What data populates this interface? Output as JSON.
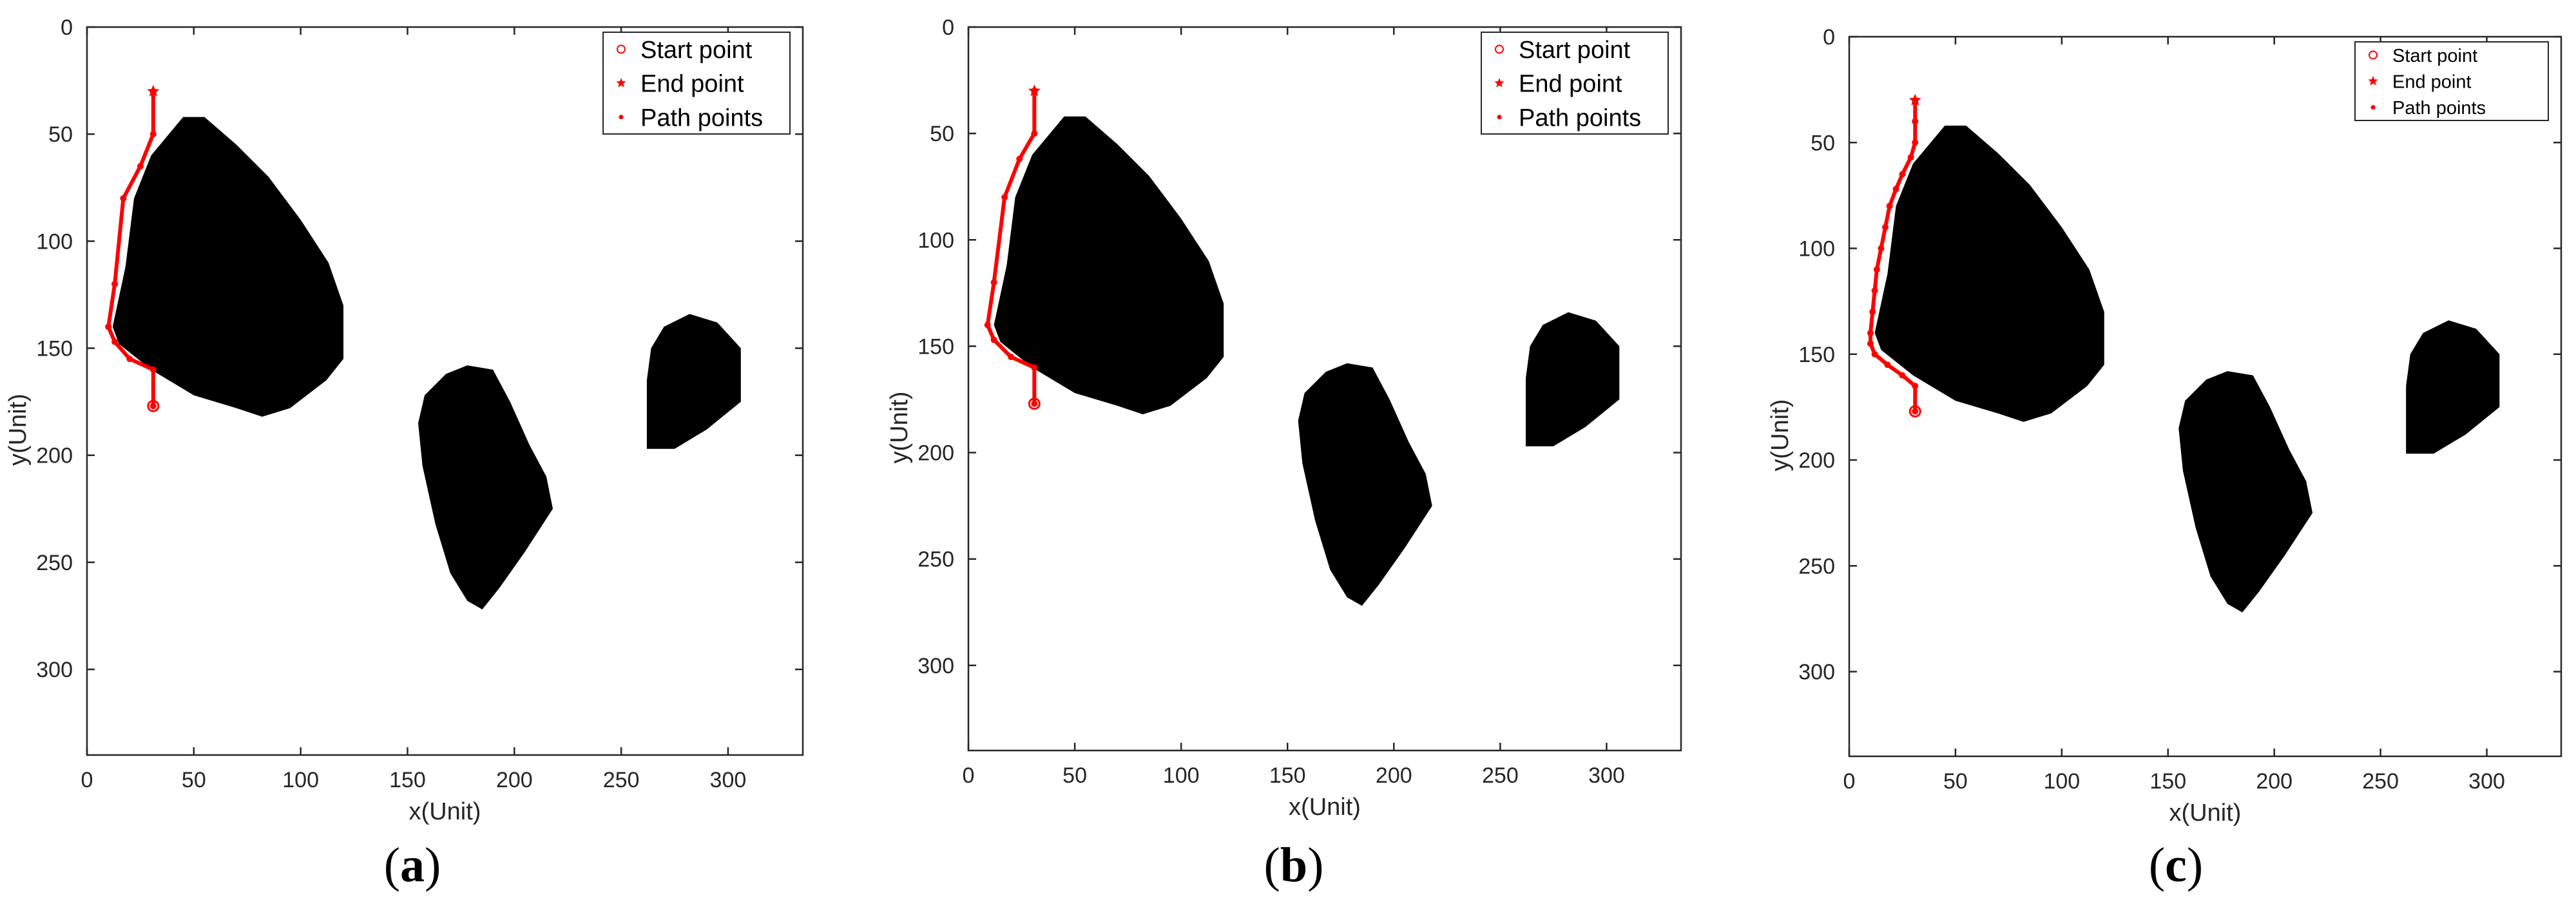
{
  "figure": {
    "captions": [
      {
        "open": "(",
        "letter": "a",
        "close": ")"
      },
      {
        "open": "(",
        "letter": "b",
        "close": ")"
      },
      {
        "open": "(",
        "letter": "c",
        "close": ")"
      }
    ]
  },
  "chart_data": [
    {
      "type": "scatter",
      "panel": "a",
      "title": "",
      "xlabel": "x(Unit)",
      "ylabel": "y(Unit)",
      "xlim": [
        0,
        335
      ],
      "ylim": [
        0,
        340
      ],
      "y_inverted": true,
      "xticks": [
        0,
        50,
        100,
        150,
        200,
        250,
        300
      ],
      "yticks": [
        0,
        50,
        100,
        150,
        200,
        250,
        300
      ],
      "grid": false,
      "legend_position": "top-right",
      "colors": {
        "obstacle": "#000000",
        "path": "#ff0000"
      },
      "obstacles": [
        {
          "name": "obstacle-1",
          "points": [
            [
              12,
              140
            ],
            [
              18,
              112
            ],
            [
              22,
              80
            ],
            [
              30,
              60
            ],
            [
              45,
              42
            ],
            [
              55,
              42
            ],
            [
              70,
              55
            ],
            [
              85,
              70
            ],
            [
              100,
              90
            ],
            [
              113,
              110
            ],
            [
              120,
              130
            ],
            [
              120,
              155
            ],
            [
              112,
              165
            ],
            [
              95,
              178
            ],
            [
              82,
              182
            ],
            [
              70,
              178
            ],
            [
              50,
              172
            ],
            [
              30,
              160
            ],
            [
              15,
              148
            ]
          ]
        },
        {
          "name": "obstacle-2",
          "points": [
            [
              155,
              185
            ],
            [
              158,
              172
            ],
            [
              168,
              162
            ],
            [
              178,
              158
            ],
            [
              190,
              160
            ],
            [
              198,
              175
            ],
            [
              207,
              195
            ],
            [
              215,
              210
            ],
            [
              218,
              225
            ],
            [
              205,
              245
            ],
            [
              193,
              262
            ],
            [
              185,
              272
            ],
            [
              178,
              268
            ],
            [
              170,
              255
            ],
            [
              163,
              232
            ],
            [
              157,
              205
            ]
          ]
        },
        {
          "name": "obstacle-3",
          "points": [
            [
              262,
              165
            ],
            [
              264,
              150
            ],
            [
              270,
              140
            ],
            [
              282,
              134
            ],
            [
              295,
              138
            ],
            [
              306,
              150
            ],
            [
              306,
              175
            ],
            [
              290,
              188
            ],
            [
              275,
              197
            ],
            [
              262,
              197
            ]
          ]
        }
      ],
      "series": [
        {
          "name": "Start point",
          "marker": "o",
          "x": [
            31
          ],
          "y": [
            177
          ]
        },
        {
          "name": "End point",
          "marker": "*",
          "x": [
            31
          ],
          "y": [
            30
          ]
        },
        {
          "name": "Path points",
          "marker": ".",
          "x": [
            31,
            31,
            20,
            13,
            10,
            13,
            17,
            25,
            31,
            31
          ],
          "y": [
            177,
            160,
            155,
            147,
            140,
            120,
            80,
            65,
            50,
            30
          ]
        }
      ]
    },
    {
      "type": "scatter",
      "panel": "b",
      "title": "",
      "xlabel": "x(Unit)",
      "ylabel": "y(Unit)",
      "xlim": [
        0,
        335
      ],
      "ylim": [
        0,
        340
      ],
      "y_inverted": true,
      "xticks": [
        0,
        50,
        100,
        150,
        200,
        250,
        300
      ],
      "yticks": [
        0,
        50,
        100,
        150,
        200,
        250,
        300
      ],
      "grid": false,
      "legend_position": "top-right",
      "colors": {
        "obstacle": "#000000",
        "path": "#ff0000"
      },
      "obstacles": [
        {
          "name": "obstacle-1",
          "points": [
            [
              12,
              140
            ],
            [
              18,
              112
            ],
            [
              22,
              80
            ],
            [
              30,
              60
            ],
            [
              45,
              42
            ],
            [
              55,
              42
            ],
            [
              70,
              55
            ],
            [
              85,
              70
            ],
            [
              100,
              90
            ],
            [
              113,
              110
            ],
            [
              120,
              130
            ],
            [
              120,
              155
            ],
            [
              112,
              165
            ],
            [
              95,
              178
            ],
            [
              82,
              182
            ],
            [
              70,
              178
            ],
            [
              50,
              172
            ],
            [
              30,
              160
            ],
            [
              15,
              148
            ]
          ]
        },
        {
          "name": "obstacle-2",
          "points": [
            [
              155,
              185
            ],
            [
              158,
              172
            ],
            [
              168,
              162
            ],
            [
              178,
              158
            ],
            [
              190,
              160
            ],
            [
              198,
              175
            ],
            [
              207,
              195
            ],
            [
              215,
              210
            ],
            [
              218,
              225
            ],
            [
              205,
              245
            ],
            [
              193,
              262
            ],
            [
              185,
              272
            ],
            [
              178,
              268
            ],
            [
              170,
              255
            ],
            [
              163,
              232
            ],
            [
              157,
              205
            ]
          ]
        },
        {
          "name": "obstacle-3",
          "points": [
            [
              262,
              165
            ],
            [
              264,
              150
            ],
            [
              270,
              140
            ],
            [
              282,
              134
            ],
            [
              295,
              138
            ],
            [
              306,
              150
            ],
            [
              306,
              175
            ],
            [
              290,
              188
            ],
            [
              275,
              197
            ],
            [
              262,
              197
            ]
          ]
        }
      ],
      "series": [
        {
          "name": "Start point",
          "marker": "o",
          "x": [
            31
          ],
          "y": [
            177
          ]
        },
        {
          "name": "End point",
          "marker": "*",
          "x": [
            31
          ],
          "y": [
            30
          ]
        },
        {
          "name": "Path points",
          "marker": ".",
          "x": [
            31,
            31,
            20,
            12,
            9,
            12,
            17,
            24,
            31,
            31
          ],
          "y": [
            177,
            160,
            155,
            147,
            140,
            120,
            80,
            62,
            50,
            30
          ]
        }
      ]
    },
    {
      "type": "scatter",
      "panel": "c",
      "title": "",
      "xlabel": "x(Unit)",
      "ylabel": "y(Unit)",
      "xlim": [
        0,
        335
      ],
      "ylim": [
        0,
        340
      ],
      "y_inverted": true,
      "xticks": [
        0,
        50,
        100,
        150,
        200,
        250,
        300
      ],
      "yticks": [
        0,
        50,
        100,
        150,
        200,
        250,
        300
      ],
      "grid": false,
      "legend_position": "top-right",
      "colors": {
        "obstacle": "#000000",
        "path": "#ff0000"
      },
      "obstacles": [
        {
          "name": "obstacle-1",
          "points": [
            [
              12,
              140
            ],
            [
              18,
              112
            ],
            [
              22,
              80
            ],
            [
              30,
              60
            ],
            [
              45,
              42
            ],
            [
              55,
              42
            ],
            [
              70,
              55
            ],
            [
              85,
              70
            ],
            [
              100,
              90
            ],
            [
              113,
              110
            ],
            [
              120,
              130
            ],
            [
              120,
              155
            ],
            [
              112,
              165
            ],
            [
              95,
              178
            ],
            [
              82,
              182
            ],
            [
              70,
              178
            ],
            [
              50,
              172
            ],
            [
              30,
              160
            ],
            [
              15,
              148
            ]
          ]
        },
        {
          "name": "obstacle-2",
          "points": [
            [
              155,
              185
            ],
            [
              158,
              172
            ],
            [
              168,
              162
            ],
            [
              178,
              158
            ],
            [
              190,
              160
            ],
            [
              198,
              175
            ],
            [
              207,
              195
            ],
            [
              215,
              210
            ],
            [
              218,
              225
            ],
            [
              205,
              245
            ],
            [
              193,
              262
            ],
            [
              185,
              272
            ],
            [
              178,
              268
            ],
            [
              170,
              255
            ],
            [
              163,
              232
            ],
            [
              157,
              205
            ]
          ]
        },
        {
          "name": "obstacle-3",
          "points": [
            [
              262,
              165
            ],
            [
              264,
              150
            ],
            [
              270,
              140
            ],
            [
              282,
              134
            ],
            [
              295,
              138
            ],
            [
              306,
              150
            ],
            [
              306,
              175
            ],
            [
              290,
              188
            ],
            [
              275,
              197
            ],
            [
              262,
              197
            ]
          ]
        }
      ],
      "series": [
        {
          "name": "Start point",
          "marker": "o",
          "x": [
            31
          ],
          "y": [
            177
          ]
        },
        {
          "name": "End point",
          "marker": "*",
          "x": [
            31
          ],
          "y": [
            30
          ]
        },
        {
          "name": "Path points",
          "marker": ".",
          "x": [
            31,
            31,
            25,
            18,
            12,
            10,
            10,
            11,
            12,
            13,
            15,
            17,
            19,
            22,
            25,
            29,
            31,
            31,
            31
          ],
          "y": [
            177,
            165,
            160,
            155,
            150,
            145,
            140,
            130,
            120,
            110,
            100,
            90,
            80,
            72,
            65,
            57,
            50,
            40,
            30
          ]
        }
      ]
    }
  ]
}
